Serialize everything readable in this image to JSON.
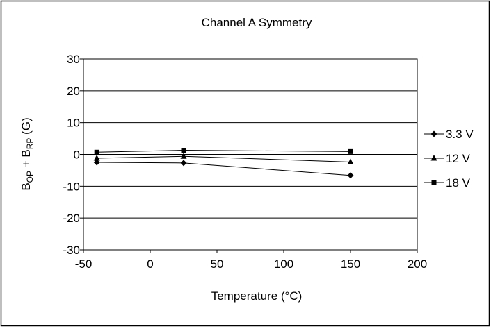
{
  "chart_data": {
    "type": "line",
    "title": "Channel A Symmetry",
    "xlabel": "Temperature (°C)",
    "ylabel_main": "B",
    "ylabel_sub1": "OP",
    "ylabel_mid": " + B",
    "ylabel_sub2": "RP",
    "ylabel_tail": " (G)",
    "xlim": [
      -50,
      200
    ],
    "ylim": [
      -30,
      30
    ],
    "xticks": [
      -50,
      0,
      50,
      100,
      150,
      200
    ],
    "yticks": [
      -30,
      -20,
      -10,
      0,
      10,
      20,
      30
    ],
    "xtick_labels": [
      "-50",
      "0",
      "50",
      "100",
      "150",
      "200"
    ],
    "ytick_labels": [
      "-30",
      "-20",
      "-10",
      "0",
      "10",
      "20",
      "30"
    ],
    "grid": "horizontal",
    "legend_position": "right",
    "series": [
      {
        "name": "3.3 V",
        "marker": "diamond",
        "x": [
          -40,
          25,
          150
        ],
        "y": [
          -2.5,
          -2.7,
          -6.6
        ]
      },
      {
        "name": "12 V",
        "marker": "triangle",
        "x": [
          -40,
          25,
          150
        ],
        "y": [
          -1.2,
          -0.6,
          -2.4
        ]
      },
      {
        "name": "18 V",
        "marker": "square",
        "x": [
          -40,
          25,
          150
        ],
        "y": [
          0.7,
          1.3,
          0.9
        ]
      }
    ],
    "colors": {
      "line": "#000000",
      "background": "#ffffff"
    }
  }
}
